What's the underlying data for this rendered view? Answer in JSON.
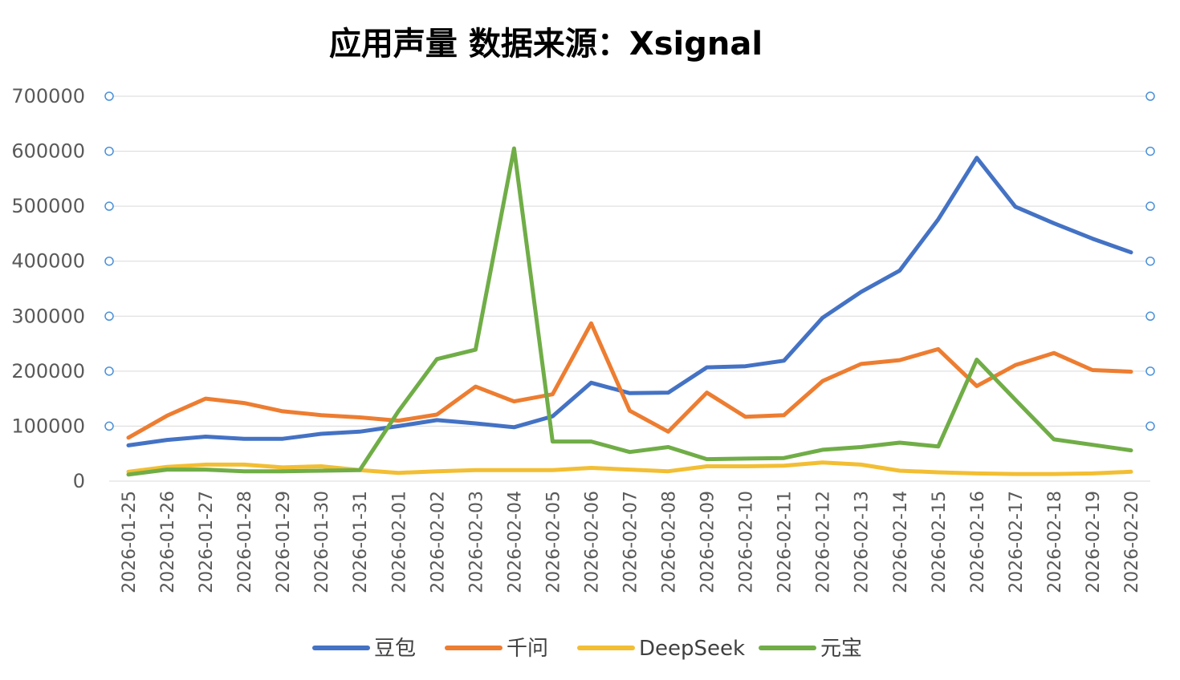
{
  "chart_data": {
    "type": "line",
    "title": "应用声量 数据来源：Xsignal",
    "xlabel": "",
    "ylabel": "",
    "ylim": [
      0,
      700000
    ],
    "yticks": [
      0,
      100000,
      200000,
      300000,
      400000,
      500000,
      600000,
      700000
    ],
    "grid": true,
    "legend_position": "bottom",
    "categories": [
      "2026-01-25",
      "2026-01-26",
      "2026-01-27",
      "2026-01-28",
      "2026-01-29",
      "2026-01-30",
      "2026-01-31",
      "2026-02-01",
      "2026-02-02",
      "2026-02-03",
      "2026-02-04",
      "2026-02-05",
      "2026-02-06",
      "2026-02-07",
      "2026-02-08",
      "2026-02-09",
      "2026-02-10",
      "2026-02-11",
      "2026-02-12",
      "2026-02-13",
      "2026-02-14",
      "2026-02-15",
      "2026-02-16",
      "2026-02-17",
      "2026-02-18",
      "2026-02-19",
      "2026-02-20"
    ],
    "series": [
      {
        "name": "豆包",
        "color": "#4472C4",
        "values": [
          65000,
          75000,
          81000,
          77000,
          77000,
          86000,
          90000,
          100000,
          111000,
          105000,
          98000,
          118000,
          179000,
          160000,
          161000,
          207000,
          209000,
          219000,
          297000,
          344000,
          383000,
          476000,
          588000,
          499000,
          469000,
          441000,
          416000
        ]
      },
      {
        "name": "千问",
        "color": "#ED7D31",
        "values": [
          79000,
          119000,
          150000,
          142000,
          127000,
          120000,
          116000,
          110000,
          121000,
          172000,
          145000,
          158000,
          287000,
          128000,
          90000,
          161000,
          117000,
          120000,
          182000,
          213000,
          220000,
          240000,
          173000,
          211000,
          233000,
          202000,
          199000
        ]
      },
      {
        "name": "DeepSeek",
        "color": "#F2BE33",
        "values": [
          17000,
          26000,
          30000,
          30000,
          25000,
          27000,
          20000,
          15000,
          18000,
          20000,
          20000,
          20000,
          24000,
          21000,
          18000,
          27000,
          27000,
          28000,
          34000,
          30000,
          19000,
          16000,
          14000,
          13000,
          13000,
          14000,
          17000
        ]
      },
      {
        "name": "元宝",
        "color": "#70AD47",
        "values": [
          12000,
          21000,
          21000,
          18000,
          18000,
          19000,
          20000,
          127000,
          222000,
          239000,
          605000,
          72000,
          72000,
          53000,
          62000,
          40000,
          41000,
          42000,
          57000,
          62000,
          70000,
          63000,
          221000,
          148000,
          76000,
          66000,
          56000
        ]
      }
    ]
  }
}
